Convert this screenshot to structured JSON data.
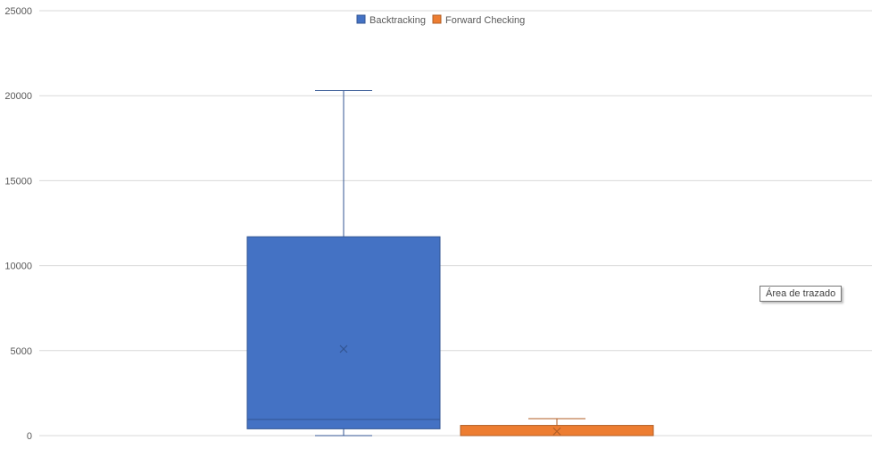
{
  "chart_data": {
    "type": "box",
    "ylim": [
      0,
      25000
    ],
    "yticks": [
      "0",
      "5000",
      "10000",
      "15000",
      "20000",
      "25000"
    ],
    "grid": true,
    "legend_position": "top",
    "series": [
      {
        "name": "Backtracking",
        "color": "#4472C4",
        "min": 0,
        "q1": 400,
        "median": 950,
        "q3": 11700,
        "max": 20300,
        "mean": 5100
      },
      {
        "name": "Forward Checking",
        "color": "#ED7D31",
        "min": 0,
        "q1": 0,
        "median": 0,
        "q3": 600,
        "max": 1000,
        "mean": 250
      }
    ]
  },
  "tooltip": {
    "text": "Área de trazado"
  }
}
